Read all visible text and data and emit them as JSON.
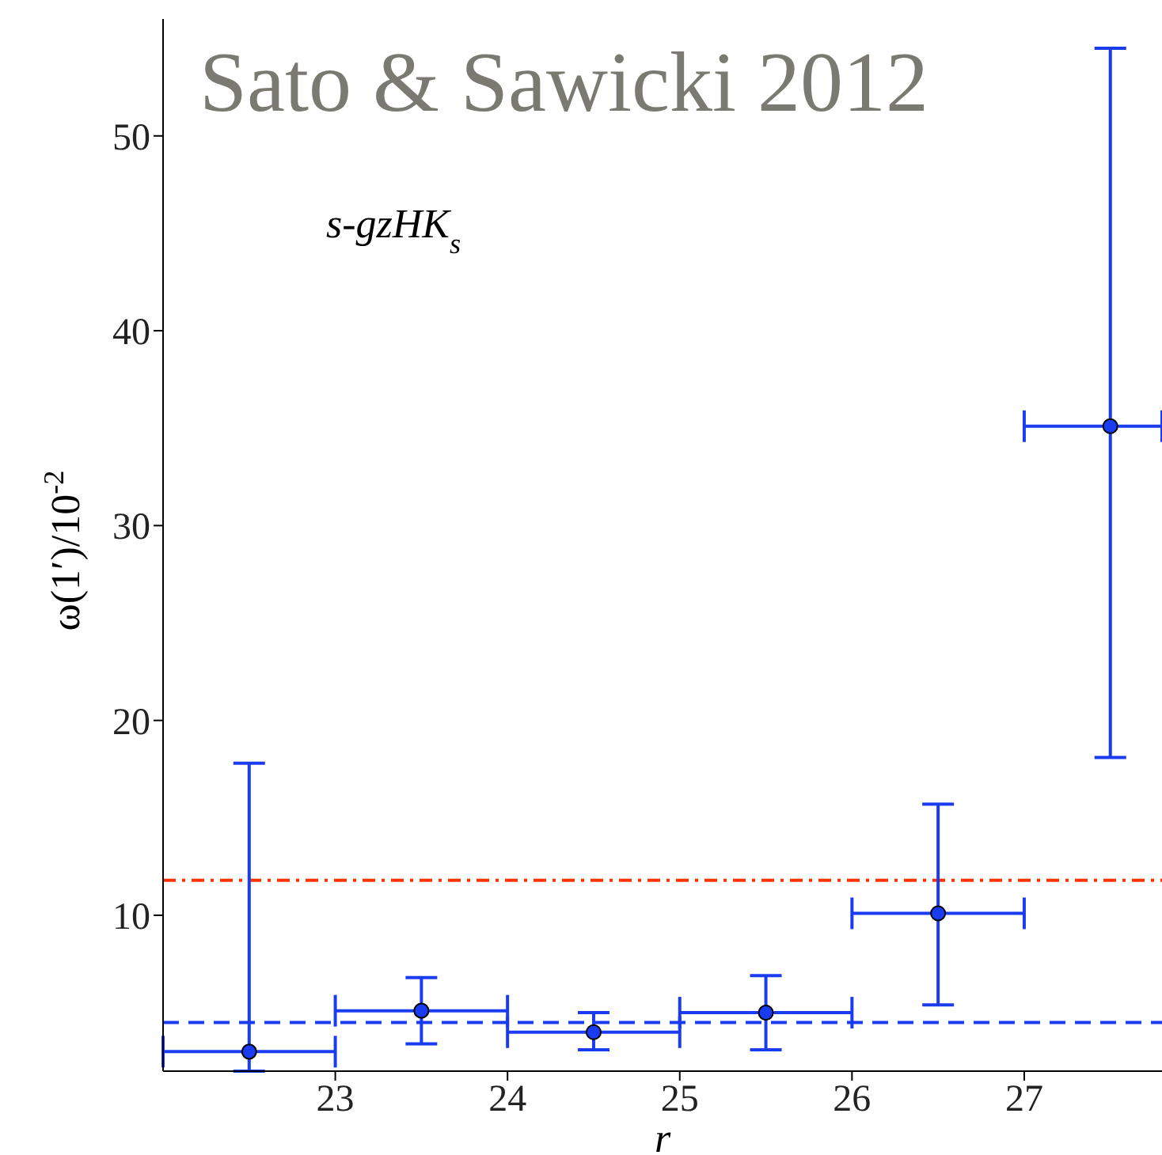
{
  "chart_data": {
    "type": "scatter",
    "xlabel": "r",
    "ylabel": "ω(1′)/10$^{-2}$",
    "annotations": [
      "Sato & Sawicki 2012",
      "s-gzHK$_{s}$"
    ],
    "x": [
      22.5,
      23.5,
      24.5,
      25.5,
      26.5,
      27.5
    ],
    "series": [
      {
        "color": "#1a3cf0",
        "values": [
          3.0,
          5.1,
          4.0,
          5.0,
          10.1,
          35.1
        ],
        "errors": [
          [
            2.0,
            17.8
          ],
          [
            3.4,
            6.8
          ],
          [
            3.1,
            5.0
          ],
          [
            3.1,
            6.9
          ],
          [
            5.4,
            15.7
          ],
          [
            18.1,
            54.5
          ]
        ],
        "xerrors": [
          [
            22.0,
            23.0
          ],
          [
            23.0,
            24.0
          ],
          [
            24.0,
            25.0
          ],
          [
            25.0,
            26.0
          ],
          [
            26.0,
            27.0
          ],
          [
            27.0,
            27.8
          ]
        ]
      }
    ],
    "marker": "circle",
    "ref_lines": [
      {
        "axis": "y",
        "value": 4.5,
        "color": "#1a3cf0",
        "line_style": "dashed"
      },
      {
        "axis": "y",
        "value": 11.8,
        "color": "#ff3300",
        "line_style": "dashdot"
      }
    ],
    "xlim": [
      22.0,
      27.8
    ],
    "xticks": [
      23,
      24,
      25,
      26,
      27
    ],
    "ylim": [
      2,
      56
    ],
    "yticks": [
      10,
      20,
      30,
      40,
      50
    ],
    "grid": false,
    "legend": false
  }
}
